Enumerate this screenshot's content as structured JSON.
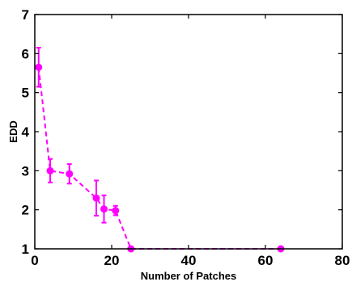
{
  "chart_data": {
    "type": "line",
    "title": "",
    "xlabel": "Number of Patches",
    "ylabel": "EDD",
    "xlim": [
      0,
      80
    ],
    "ylim": [
      1,
      7
    ],
    "xticks": [
      0,
      20,
      40,
      60,
      80
    ],
    "yticks": [
      1,
      2,
      3,
      4,
      5,
      6,
      7
    ],
    "grid": false,
    "series": [
      {
        "color": "#ff00ff",
        "line_style": "dashed",
        "marker": "circle",
        "x": [
          1,
          4,
          9,
          16,
          18,
          21,
          25,
          64
        ],
        "y": [
          5.65,
          3.0,
          2.92,
          2.3,
          2.02,
          1.98,
          1.0,
          1.0
        ],
        "error": [
          0.5,
          0.3,
          0.25,
          0.45,
          0.35,
          0.12,
          0,
          0
        ]
      }
    ]
  }
}
